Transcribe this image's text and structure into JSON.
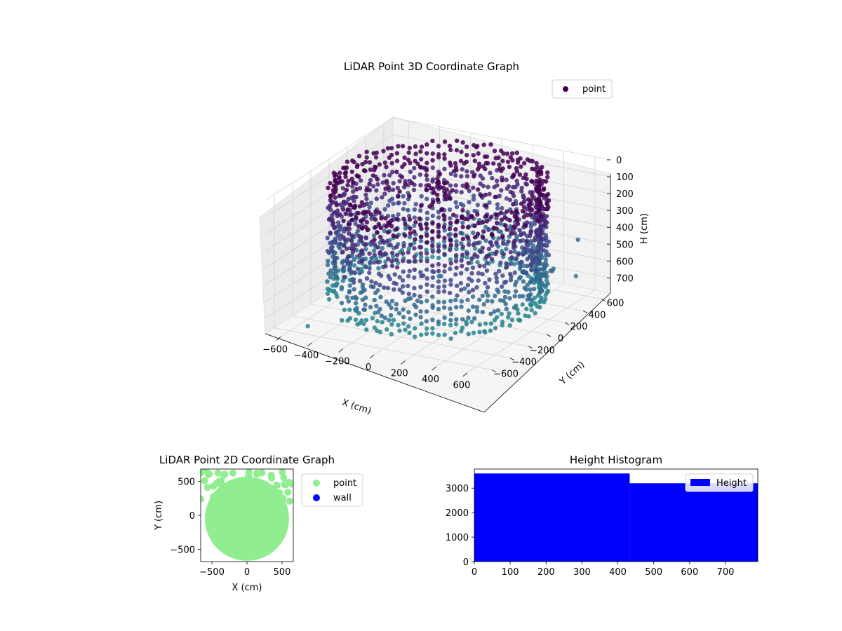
{
  "chart_data": [
    {
      "type": "scatter3d",
      "title": "LiDAR Point 3D Coordinate Graph",
      "xlabel": "X (cm)",
      "ylabel": "Y (cm)",
      "zlabel": "H (cm)",
      "x_ticks": [
        -600,
        -400,
        -200,
        0,
        200,
        400,
        600
      ],
      "y_ticks": [
        -600,
        -400,
        -200,
        0,
        200,
        400,
        600
      ],
      "z_ticks": [
        0,
        100,
        200,
        300,
        400,
        500,
        600,
        700
      ],
      "xlim": [
        -700,
        700
      ],
      "ylim": [
        -700,
        700
      ],
      "zlim": [
        0,
        790
      ],
      "z_inverted": true,
      "grid": true,
      "colormap": "viridis",
      "legend": {
        "position": "top-right",
        "entries": [
          {
            "label": "point",
            "color": "#440154"
          }
        ]
      },
      "series": [
        {
          "name": "point",
          "shape": "cylinder wall",
          "radius": 600,
          "height_range": [
            0,
            700
          ],
          "angle_range_deg": [
            -120,
            210
          ]
        }
      ]
    },
    {
      "type": "scatter",
      "title": "LiDAR Point 2D Coordinate Graph",
      "xlabel": "X (cm)",
      "ylabel": "Y (cm)",
      "x_ticks": [
        -500,
        0,
        500
      ],
      "y_ticks": [
        -500,
        0,
        500
      ],
      "xlim": [
        -660,
        660
      ],
      "ylim": [
        -680,
        680
      ],
      "legend": {
        "position": "outside-right",
        "entries": [
          {
            "label": "point",
            "color": "#90ee90"
          },
          {
            "label": "wall",
            "color": "#0000ff"
          }
        ]
      },
      "series": [
        {
          "name": "point",
          "color": "#90ee90",
          "shape": "filled disc",
          "center": [
            0,
            -50
          ],
          "radius": 600
        }
      ]
    },
    {
      "type": "bar",
      "title": "Height Histogram",
      "xlabel": "",
      "ylabel": "",
      "x_ticks": [
        0,
        100,
        200,
        300,
        400,
        500,
        600,
        700
      ],
      "y_ticks": [
        0,
        1000,
        2000,
        3000
      ],
      "xlim": [
        0,
        790
      ],
      "ylim": [
        0,
        3780
      ],
      "color": "#0000ff",
      "legend": {
        "position": "top-right",
        "entries": [
          {
            "label": "Height",
            "color": "#0000ff"
          }
        ]
      },
      "bins": [
        {
          "x0": 0,
          "x1": 433,
          "value": 3600
        },
        {
          "x0": 433,
          "x1": 790,
          "value": 3200
        }
      ]
    }
  ]
}
